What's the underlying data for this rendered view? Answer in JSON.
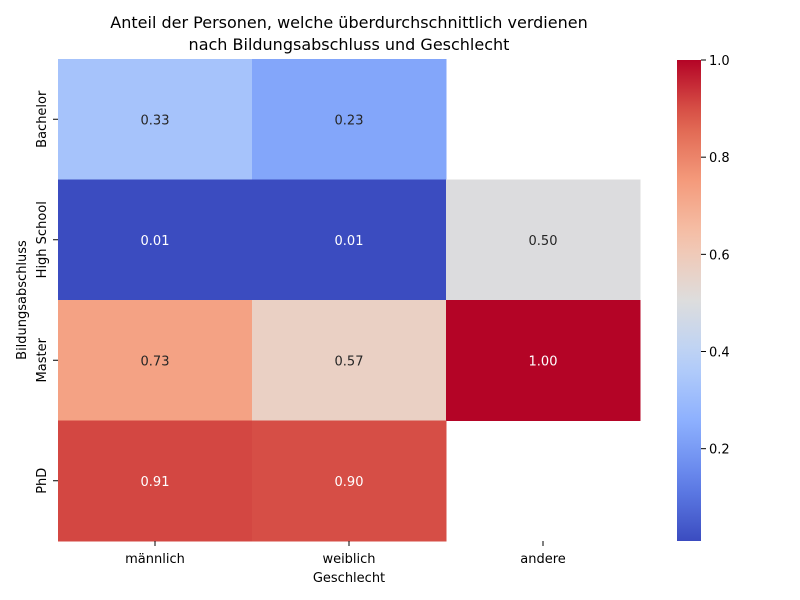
{
  "chart_data": {
    "type": "heatmap",
    "title_lines": [
      "Anteil der Personen, welche überdurchschnittlich verdienen",
      "nach Bildungsabschluss und Geschlecht"
    ],
    "xlabel": "Geschlecht",
    "ylabel": "Bildungsabschluss",
    "x_categories": [
      "männlich",
      "weiblich",
      "andere"
    ],
    "y_categories": [
      "Bachelor",
      "High School",
      "Master",
      "PhD"
    ],
    "values": [
      [
        0.33,
        0.23,
        null
      ],
      [
        0.01,
        0.01,
        0.5
      ],
      [
        0.73,
        0.57,
        1.0
      ],
      [
        0.91,
        0.9,
        null
      ]
    ],
    "value_labels": [
      [
        "0.33",
        "0.23",
        ""
      ],
      [
        "0.01",
        "0.01",
        "0.50"
      ],
      [
        "0.73",
        "0.57",
        "1.00"
      ],
      [
        "0.91",
        "0.90",
        ""
      ]
    ],
    "colormap": "coolwarm",
    "colorbar": {
      "range": [
        0.01,
        1.0
      ],
      "ticks": [
        0.2,
        0.4,
        0.6,
        0.8,
        1.0
      ],
      "tick_labels": [
        "0.2",
        "0.4",
        "0.6",
        "0.8",
        "1.0"
      ]
    }
  }
}
